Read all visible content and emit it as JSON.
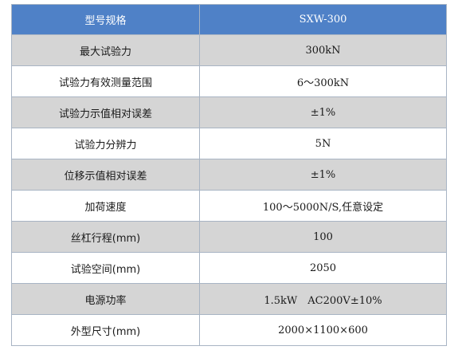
{
  "header": {
    "label": "型号规格",
    "value": "SXW-300"
  },
  "rows": [
    {
      "label": "最大试验力",
      "value": "300kN"
    },
    {
      "label": "试验力有效测量范围",
      "value": "6～300kN"
    },
    {
      "label": "试验力示值相对误差",
      "value": "±1%"
    },
    {
      "label": "试验力分辨力",
      "value": "5N"
    },
    {
      "label": "位移示值相对误差",
      "value": "±1%"
    },
    {
      "label": "加荷速度",
      "value": "100～5000N/S,任意设定"
    },
    {
      "label": "丝杠行程(mm)",
      "value": "100"
    },
    {
      "label": "试验空间(mm)",
      "value": "2050"
    },
    {
      "label": "电源功率",
      "value": "1.5kW　AC200V±10%"
    },
    {
      "label": "外型尺寸(mm)",
      "value": "2000×1100×600"
    }
  ]
}
